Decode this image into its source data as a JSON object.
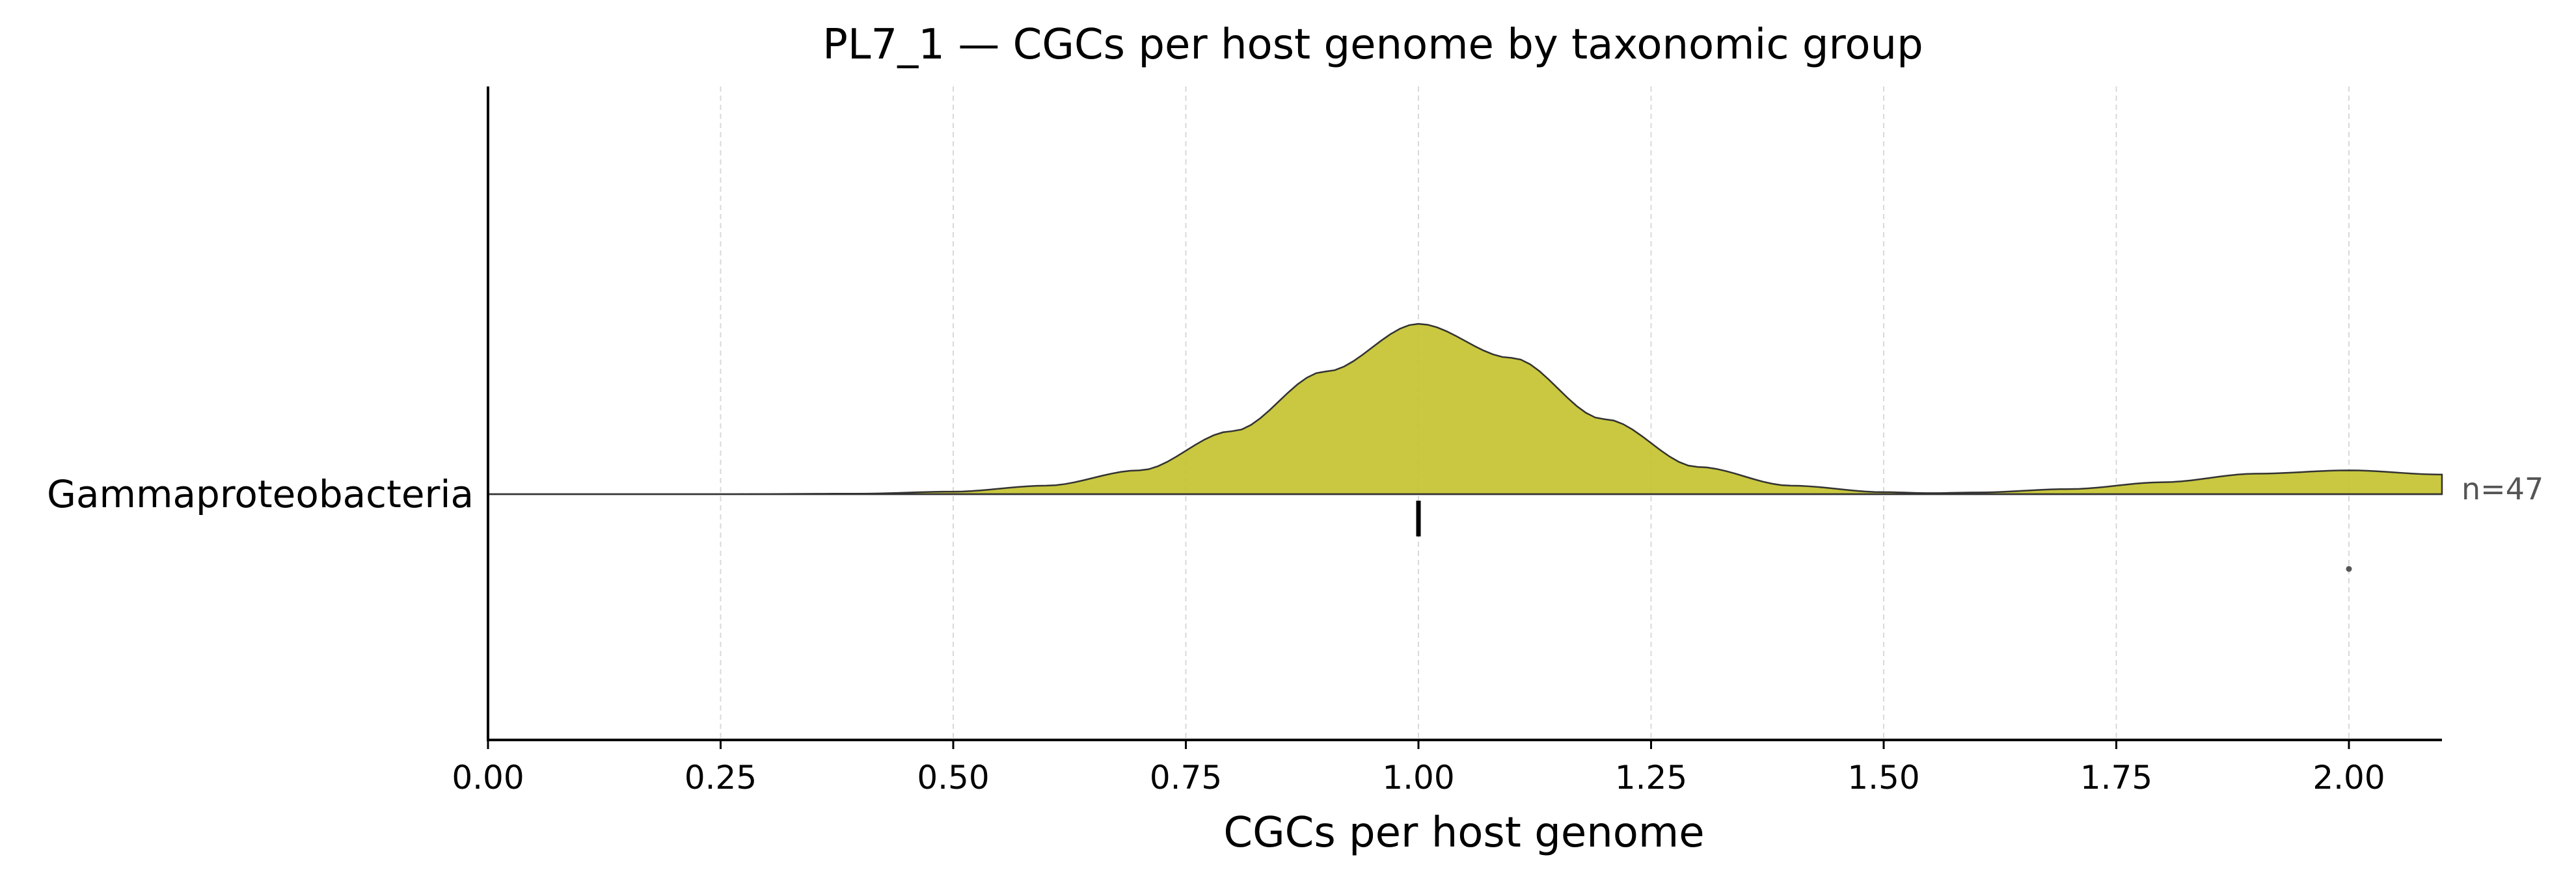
{
  "chart_data": {
    "type": "ridgeline",
    "title": "PL7_1 — CGCs per host genome by taxonomic group",
    "xlabel": "CGCs per host genome",
    "ylabel": "",
    "xlim": [
      0,
      2.1
    ],
    "xticks": [
      0,
      0.25,
      0.5,
      0.75,
      1.0,
      1.25,
      1.5,
      1.75,
      2.0
    ],
    "xtick_labels": [
      "0.00",
      "0.25",
      "0.50",
      "0.75",
      "1.00",
      "1.25",
      "1.50",
      "1.75",
      "2.00"
    ],
    "grid": "vertical dashed",
    "categories": [
      "Gammaproteobacteria"
    ],
    "series": [
      {
        "name": "Gammaproteobacteria",
        "n_label": "n=47",
        "color": "#c4c330",
        "edge_color": "#333333",
        "median": 1.0,
        "outliers": [
          2.0
        ],
        "density": [
          [
            0.0,
            0.0
          ],
          [
            0.25,
            0.0
          ],
          [
            0.4,
            0.003
          ],
          [
            0.5,
            0.015
          ],
          [
            0.6,
            0.05
          ],
          [
            0.7,
            0.14
          ],
          [
            0.8,
            0.37
          ],
          [
            0.9,
            0.72
          ],
          [
            1.0,
            1.0
          ],
          [
            1.1,
            0.8
          ],
          [
            1.2,
            0.44
          ],
          [
            1.3,
            0.16
          ],
          [
            1.4,
            0.05
          ],
          [
            1.5,
            0.012
          ],
          [
            1.55,
            0.006
          ],
          [
            1.6,
            0.01
          ],
          [
            1.7,
            0.03
          ],
          [
            1.8,
            0.07
          ],
          [
            1.9,
            0.12
          ],
          [
            2.0,
            0.14
          ],
          [
            2.1,
            0.115
          ]
        ]
      }
    ]
  }
}
